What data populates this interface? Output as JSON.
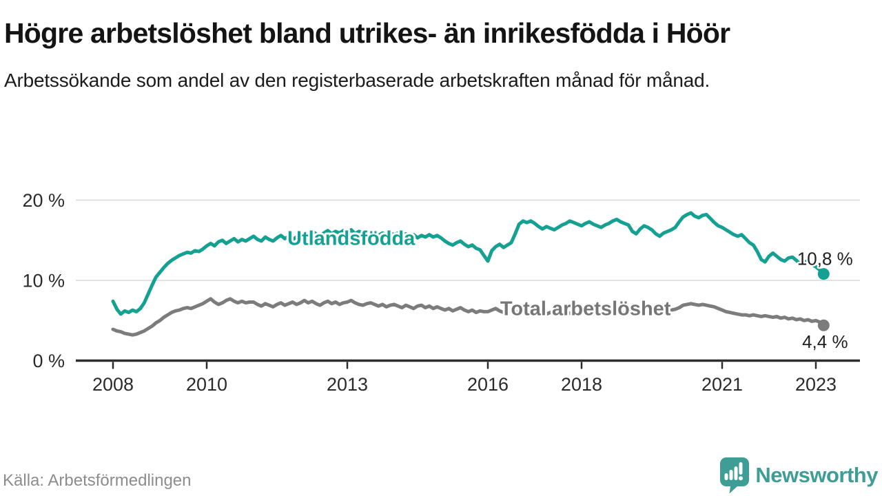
{
  "header": {
    "title": "Högre arbetslöshet bland utrikes- än inrikesfödda i Höör",
    "subtitle": "Arbetssökande som andel av den registerbaserade arbetskraften månad för månad."
  },
  "footer": {
    "source": "Källa: Arbetsförmedlingen",
    "brand_name": "Newsworthy",
    "brand_color": "#3E9D94"
  },
  "chart_data": {
    "type": "line",
    "x_start_year": 2008,
    "months_per_point": 1,
    "x_axis_ticks": [
      2008,
      2010,
      2013,
      2016,
      2018,
      2021,
      2023
    ],
    "y_axis": {
      "ticks": [
        0,
        10,
        20
      ],
      "tick_suffix": " %",
      "range": [
        0,
        21.5
      ]
    },
    "grid": "horizontal",
    "legend": "inline-labels",
    "series": [
      {
        "name": "Utlandsfödda",
        "color": "#14A192",
        "end_label": "10,8 %",
        "end_label_below": false,
        "label_at": {
          "month_index": 61,
          "value": 14.4
        },
        "values": [
          7.4,
          6.4,
          5.8,
          6.2,
          6.0,
          6.3,
          6.1,
          6.5,
          7.2,
          8.3,
          9.4,
          10.4,
          11.0,
          11.6,
          12.1,
          12.5,
          12.8,
          13.1,
          13.3,
          13.5,
          13.4,
          13.7,
          13.6,
          13.9,
          14.3,
          14.6,
          14.3,
          14.8,
          15.0,
          14.6,
          14.9,
          15.2,
          14.8,
          15.1,
          14.9,
          15.2,
          15.5,
          15.1,
          14.9,
          15.4,
          15.1,
          14.9,
          15.3,
          15.6,
          15.2,
          15.5,
          15.1,
          15.4,
          15.6,
          16.0,
          15.6,
          16.1,
          15.8,
          15.6,
          15.9,
          16.2,
          15.8,
          16.1,
          15.9,
          16.2,
          15.9,
          16.3,
          15.8,
          16.1,
          15.9,
          16.1,
          15.7,
          16.0,
          15.6,
          15.9,
          15.7,
          15.9,
          15.7,
          15.9,
          15.6,
          15.8,
          15.5,
          15.7,
          15.3,
          15.6,
          15.4,
          15.7,
          15.4,
          15.6,
          15.3,
          14.9,
          14.6,
          14.4,
          14.7,
          14.9,
          14.5,
          14.2,
          14.4,
          14.0,
          13.8,
          13.1,
          12.4,
          13.7,
          14.2,
          14.5,
          14.1,
          14.4,
          14.7,
          15.8,
          17.0,
          17.4,
          17.2,
          17.4,
          17.1,
          16.7,
          16.4,
          16.7,
          16.5,
          16.3,
          16.6,
          16.9,
          17.1,
          17.4,
          17.2,
          17.0,
          16.8,
          17.1,
          17.3,
          17.0,
          16.8,
          16.6,
          16.9,
          17.1,
          17.4,
          17.6,
          17.3,
          17.1,
          16.9,
          16.1,
          15.8,
          16.4,
          16.8,
          16.6,
          16.3,
          15.8,
          15.5,
          15.9,
          16.1,
          16.3,
          16.6,
          17.3,
          17.9,
          18.2,
          18.4,
          18.0,
          17.8,
          18.1,
          18.2,
          17.7,
          17.2,
          16.8,
          16.6,
          16.3,
          16.0,
          15.7,
          15.5,
          15.7,
          15.2,
          14.7,
          14.4,
          13.6,
          12.6,
          12.3,
          13.0,
          13.4,
          13.0,
          12.6,
          12.4,
          12.8,
          12.9,
          12.5,
          12.0,
          12.3,
          12.4,
          12.0,
          11.7,
          11.3,
          10.8
        ]
      },
      {
        "name": "Total arbetslöshet",
        "color": "#7C7C7C",
        "label_color": "#767676",
        "end_label": "4,4 %",
        "end_label_below": true,
        "label_at": {
          "month_index": 121,
          "value": 5.65
        },
        "values": [
          3.9,
          3.7,
          3.6,
          3.4,
          3.3,
          3.2,
          3.3,
          3.5,
          3.7,
          4.0,
          4.3,
          4.7,
          5.0,
          5.4,
          5.7,
          6.0,
          6.2,
          6.3,
          6.5,
          6.6,
          6.5,
          6.7,
          6.9,
          7.1,
          7.4,
          7.7,
          7.3,
          7.0,
          7.2,
          7.5,
          7.7,
          7.4,
          7.2,
          7.4,
          7.2,
          7.3,
          7.3,
          7.0,
          6.8,
          7.1,
          6.9,
          6.7,
          7.0,
          7.2,
          6.9,
          7.1,
          7.3,
          7.0,
          7.2,
          7.5,
          7.2,
          7.4,
          7.1,
          6.9,
          7.2,
          7.4,
          7.1,
          7.3,
          7.0,
          7.2,
          7.3,
          7.5,
          7.2,
          7.0,
          6.9,
          7.1,
          7.2,
          7.0,
          6.8,
          7.0,
          6.7,
          6.9,
          7.0,
          6.8,
          6.6,
          6.9,
          6.7,
          6.5,
          6.8,
          6.9,
          6.6,
          6.8,
          6.5,
          6.7,
          6.5,
          6.3,
          6.5,
          6.2,
          6.4,
          6.6,
          6.3,
          6.1,
          6.3,
          6.0,
          6.2,
          6.1,
          6.1,
          6.3,
          6.5,
          6.2,
          6.0,
          6.2,
          6.4,
          6.1,
          6.0,
          6.2,
          6.0,
          6.1,
          6.0,
          6.2,
          6.0,
          5.8,
          6.0,
          6.1,
          5.9,
          5.8,
          6.0,
          5.9,
          6.1,
          6.0,
          5.9,
          6.1,
          5.9,
          5.8,
          6.0,
          5.9,
          5.7,
          5.9,
          6.0,
          5.8,
          5.9,
          6.0,
          6.0,
          5.9,
          6.1,
          6.0,
          6.2,
          6.1,
          6.0,
          6.1,
          6.2,
          6.1,
          6.2,
          6.3,
          6.4,
          6.6,
          6.9,
          7.0,
          7.1,
          7.0,
          6.9,
          7.0,
          6.9,
          6.8,
          6.7,
          6.5,
          6.3,
          6.1,
          6.0,
          5.9,
          5.8,
          5.7,
          5.7,
          5.6,
          5.7,
          5.6,
          5.5,
          5.6,
          5.5,
          5.4,
          5.5,
          5.3,
          5.4,
          5.2,
          5.3,
          5.1,
          5.2,
          5.0,
          5.1,
          4.9,
          5.0,
          4.8,
          4.4
        ]
      }
    ]
  }
}
